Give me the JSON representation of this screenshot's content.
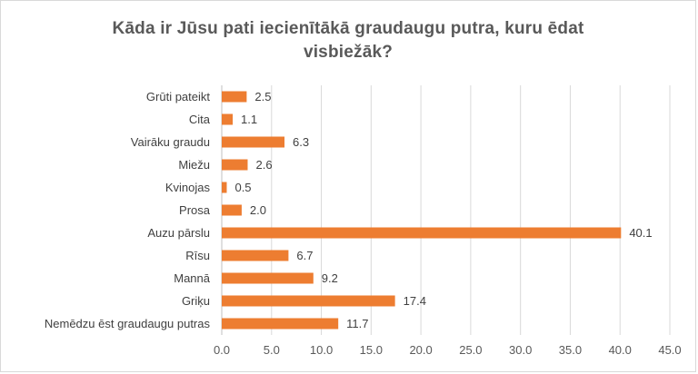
{
  "chart_data": {
    "type": "bar",
    "orientation": "horizontal",
    "title": "Kāda ir Jūsu pati iecienītākā graudaugu putra, kuru ēdat visbiežāk?",
    "categories": [
      "Grūti pateikt",
      "Cita",
      "Vairāku graudu",
      "Miežu",
      "Kvinojas",
      "Prosa",
      "Auzu pārslu",
      "Rīsu",
      "Mannā",
      "Griķu",
      "Nemēdzu ēst graudaugu putras"
    ],
    "values": [
      2.5,
      1.1,
      6.3,
      2.6,
      0.5,
      2.0,
      40.1,
      6.7,
      9.2,
      17.4,
      11.7
    ],
    "value_labels": [
      "2.5",
      "1.1",
      "6.3",
      "2.6",
      "0.5",
      "2.0",
      "40.1",
      "6.7",
      "9.2",
      "17.4",
      "11.7"
    ],
    "x_ticks": [
      "0.0",
      "5.0",
      "10.0",
      "15.0",
      "20.0",
      "25.0",
      "30.0",
      "35.0",
      "40.0",
      "45.0"
    ],
    "xlim": [
      0,
      45
    ],
    "xlabel": "",
    "ylabel": "",
    "grid": "vertical",
    "legend": "none",
    "colors": {
      "bar": "#ed7d31",
      "grid": "#d9d9d9",
      "text": "#595959"
    }
  }
}
